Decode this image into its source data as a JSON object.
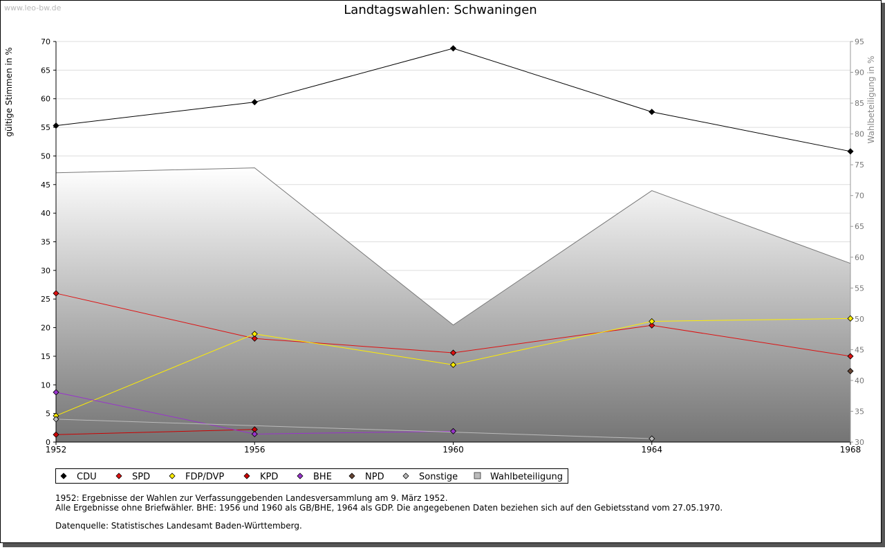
{
  "watermark": "www.leo-bw.de",
  "chart_data": {
    "type": "line",
    "title": "Landtagswahlen: Schwaningen",
    "ylabel": "gültige Stimmen in %",
    "y2label": "Wahlbeteiligung in %",
    "x": [
      "1952",
      "1956",
      "1960",
      "1964",
      "1968"
    ],
    "ylim": [
      0,
      70
    ],
    "yticks": [
      0,
      5,
      10,
      15,
      20,
      25,
      30,
      35,
      40,
      45,
      50,
      55,
      60,
      65,
      70
    ],
    "y2lim": [
      30,
      95
    ],
    "y2ticks": [
      30,
      35,
      40,
      45,
      50,
      55,
      60,
      65,
      70,
      75,
      80,
      85,
      90,
      95
    ],
    "grid": true,
    "legend_position": "bottom-left",
    "series": [
      {
        "name": "CDU",
        "color": "#000000",
        "values": [
          55.3,
          59.4,
          68.8,
          57.7,
          50.8
        ]
      },
      {
        "name": "SPD",
        "color": "#dd1111",
        "values": [
          26.0,
          18.1,
          15.6,
          20.4,
          15.0
        ]
      },
      {
        "name": "FDP/DVP",
        "color": "#ffee00",
        "values": [
          4.6,
          18.9,
          13.5,
          21.1,
          21.6
        ]
      },
      {
        "name": "KPD",
        "color": "#cc0000",
        "values": [
          1.3,
          2.2,
          null,
          null,
          null
        ]
      },
      {
        "name": "BHE",
        "color": "#9933cc",
        "values": [
          8.7,
          1.4,
          1.9,
          null,
          null
        ]
      },
      {
        "name": "NPD",
        "color": "#664433",
        "values": [
          null,
          null,
          null,
          null,
          12.4
        ]
      },
      {
        "name": "Sonstige",
        "color": "#bbbbbb",
        "values": [
          4.0,
          null,
          null,
          0.6,
          null
        ]
      },
      {
        "name": "Wahlbeteiligung",
        "color": "#aaaaaa",
        "axis": "right",
        "type": "area",
        "values": [
          73.7,
          74.5,
          49.0,
          70.8,
          59.0
        ]
      }
    ]
  },
  "notes": [
    "1952: Ergebnisse der Wahlen zur Verfassunggebenden Landesversammlung am 9. März 1952.",
    "Alle Ergebnisse ohne Briefwähler. BHE: 1956 und 1960 als GB/BHE, 1964 als GDP. Die angegebenen Daten beziehen sich auf den Gebietsstand vom 27.05.1970.",
    "Datenquelle: Statistisches Landesamt Baden-Württemberg."
  ]
}
